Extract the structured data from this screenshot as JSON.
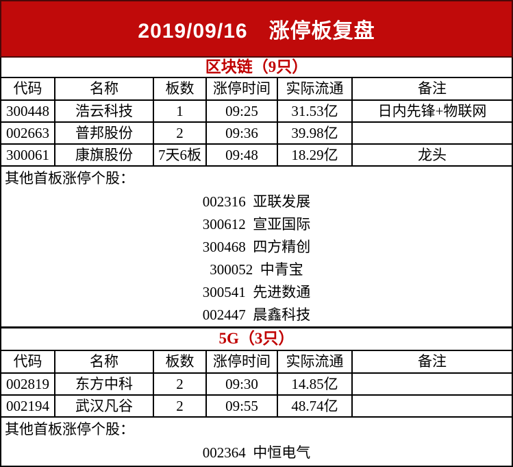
{
  "banner": {
    "title": "2019/09/16　涨停板复盘"
  },
  "colors": {
    "banner_bg": "#C00A0A",
    "banner_border": "#4A0808",
    "section_title_red": "#C00000",
    "grid_border": "#000000",
    "banner_text": "#FFFFFF"
  },
  "table_headers": [
    "代码",
    "名称",
    "板数",
    "涨停时间",
    "实际流通",
    "备注"
  ],
  "other_label": "其他首板涨停个股：",
  "sections": [
    {
      "title": "区块链（9只）",
      "rows": [
        {
          "code": "300448",
          "name": "浩云科技",
          "boards": "1",
          "time": "09:25",
          "float_cap": "31.53亿",
          "note": "日内先锋+物联网"
        },
        {
          "code": "002663",
          "name": "普邦股份",
          "boards": "2",
          "time": "09:36",
          "float_cap": "39.98亿",
          "note": ""
        },
        {
          "code": "300061",
          "name": "康旗股份",
          "boards": "7天6板",
          "time": "09:48",
          "float_cap": "18.29亿",
          "note": "龙头"
        }
      ],
      "others": [
        {
          "code": "002316",
          "name": "亚联发展"
        },
        {
          "code": "300612",
          "name": "宣亚国际"
        },
        {
          "code": "300468",
          "name": "四方精创"
        },
        {
          "code": "300052",
          "name": "中青宝"
        },
        {
          "code": "300541",
          "name": "先进数通"
        },
        {
          "code": "002447",
          "name": "晨鑫科技"
        }
      ]
    },
    {
      "title": "5G（3只）",
      "rows": [
        {
          "code": "002819",
          "name": "东方中科",
          "boards": "2",
          "time": "09:30",
          "float_cap": "14.85亿",
          "note": ""
        },
        {
          "code": "002194",
          "name": "武汉凡谷",
          "boards": "2",
          "time": "09:55",
          "float_cap": "48.74亿",
          "note": ""
        }
      ],
      "others": [
        {
          "code": "002364",
          "name": "中恒电气"
        }
      ]
    }
  ]
}
